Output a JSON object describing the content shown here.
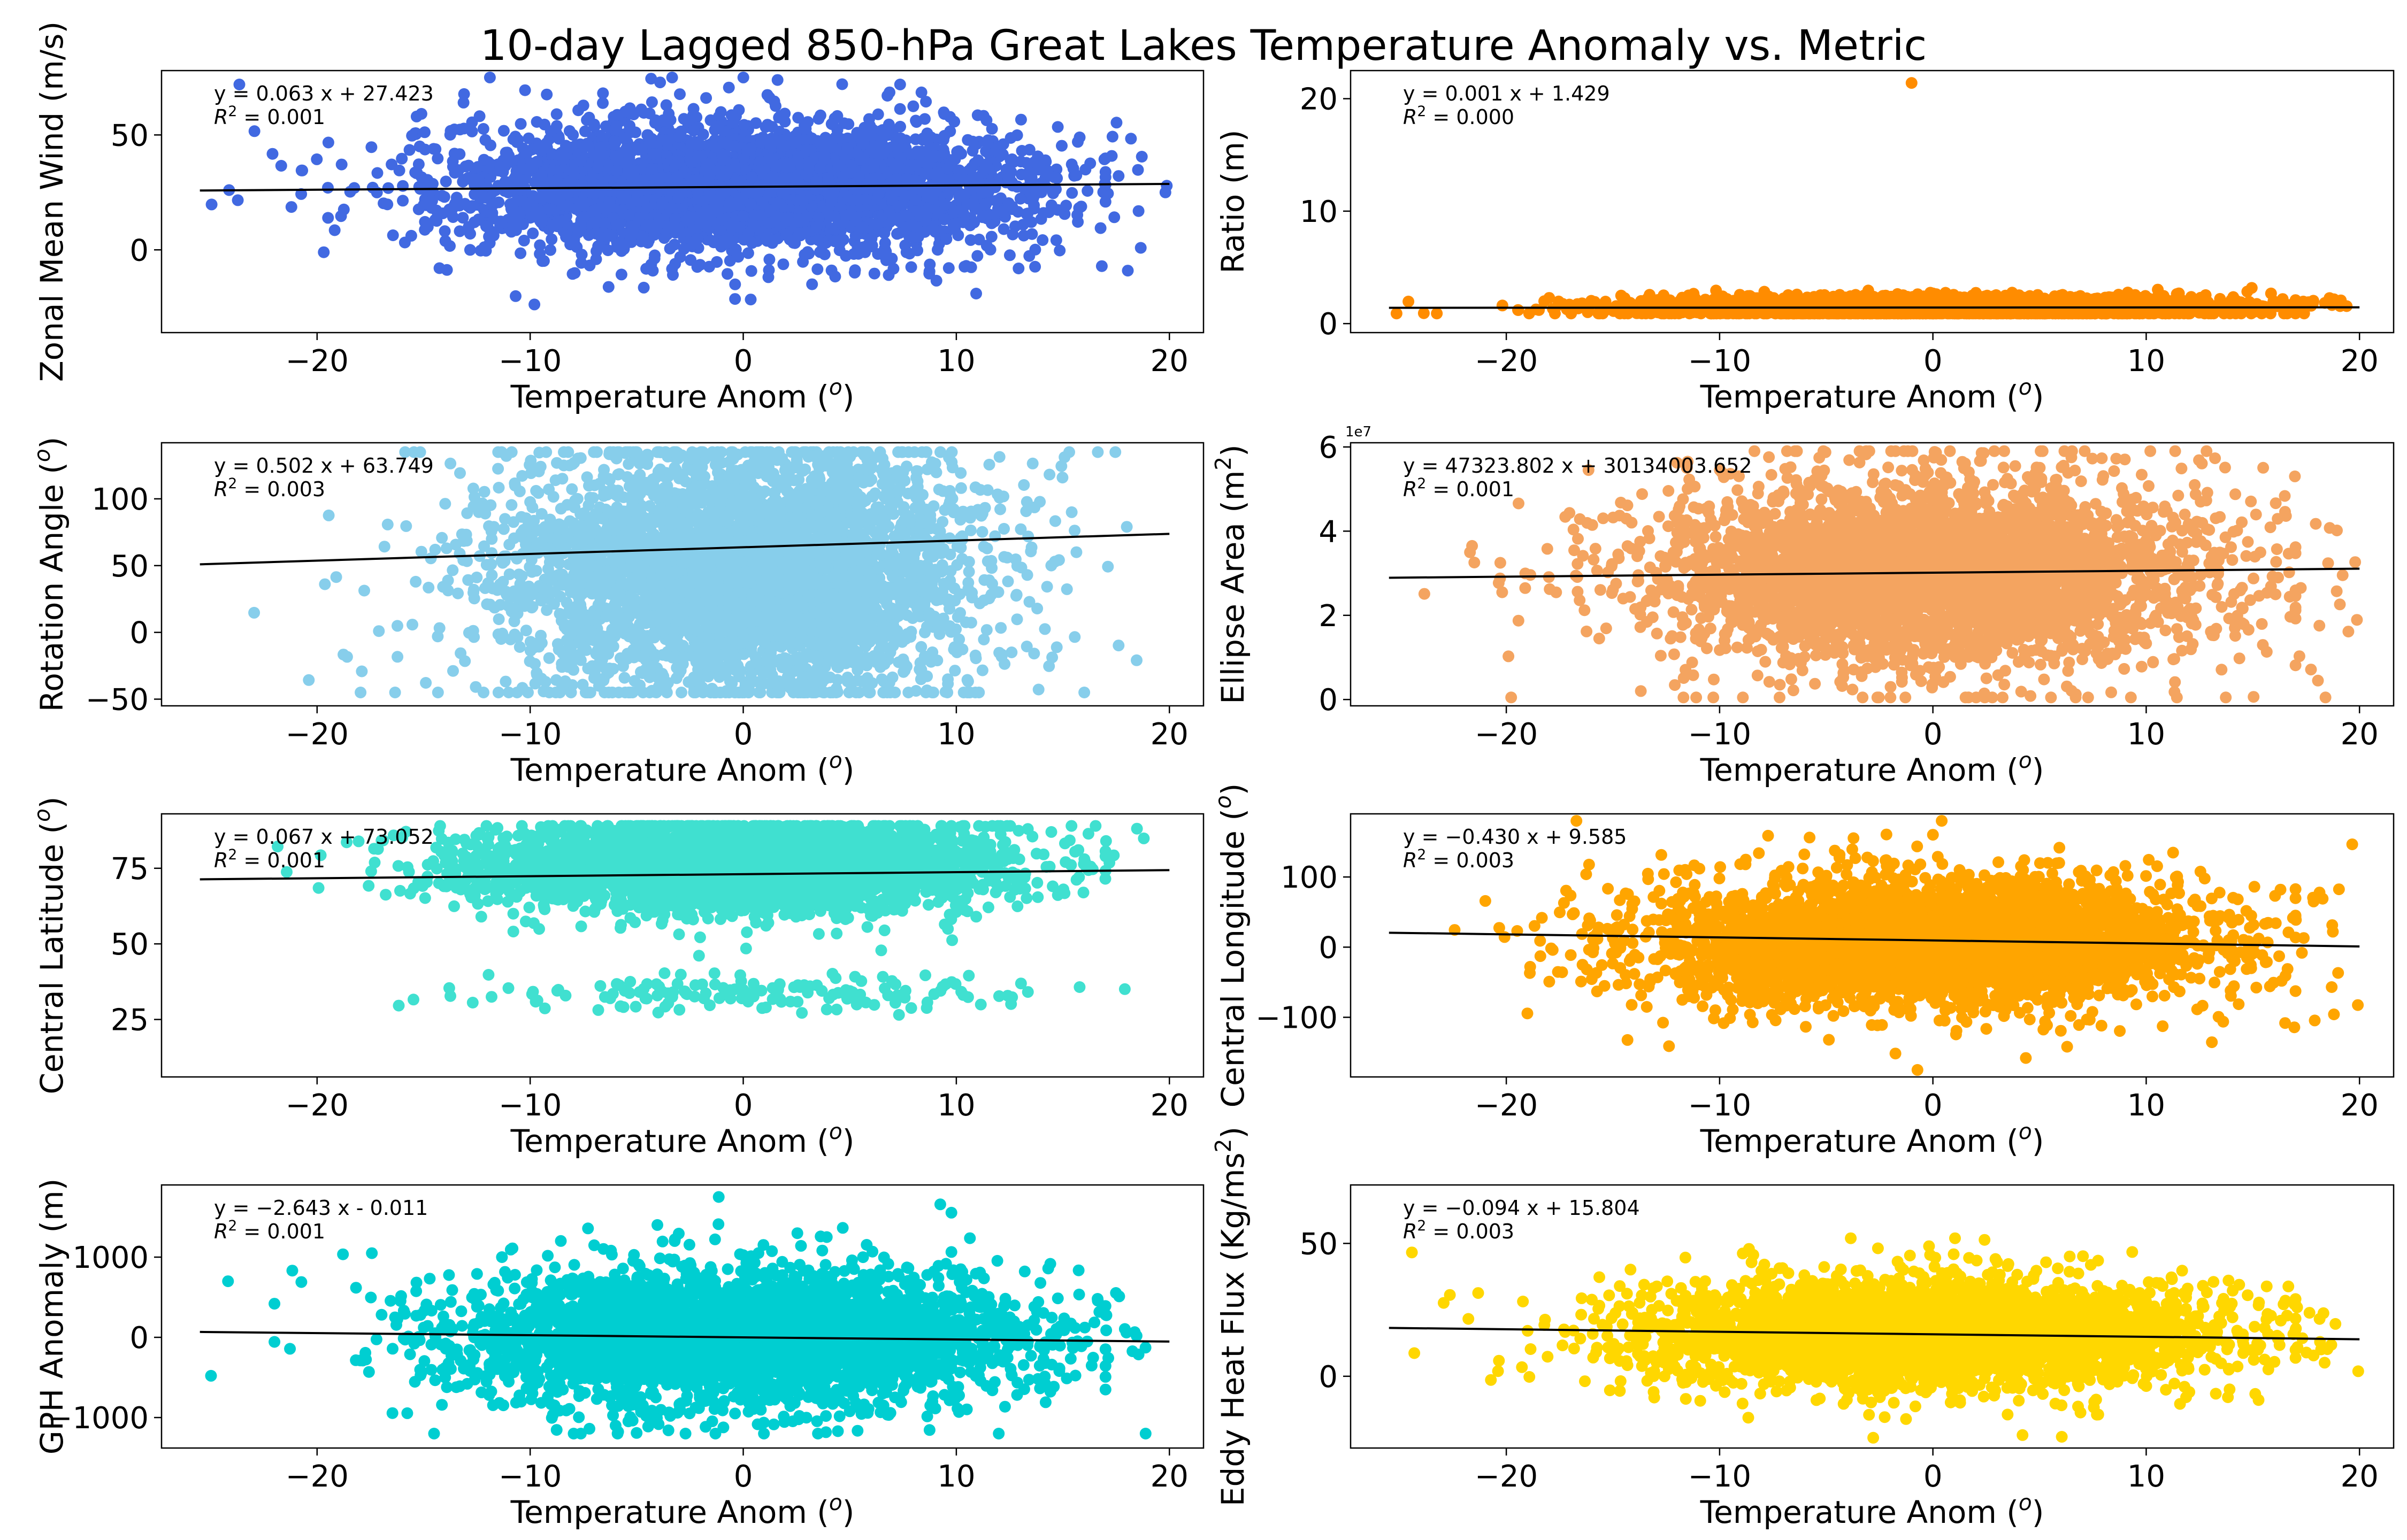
{
  "figure": {
    "title": "10-day Lagged 850-hPa Great Lakes Temperature Anomaly vs. Metric"
  },
  "chart_data": [
    {
      "type": "scatter",
      "color": "#4169E1",
      "xlabel": "Temperature Anom (o)",
      "ylabel": "Zonal Mean Wind (m/s)",
      "xlim": [
        -27.3,
        21.6
      ],
      "ylim": [
        -36,
        78
      ],
      "xticks": [
        -20,
        -10,
        0,
        10,
        20
      ],
      "yticks": [
        0,
        50
      ],
      "y_offset_label": "",
      "fit": {
        "slope": 0.063,
        "intercept": 27.423,
        "r2": 0.001,
        "x_range": [
          -25.5,
          20
        ]
      },
      "equation": "y = 0.063 x + 27.423",
      "r2_text": "R2 = 0.001",
      "cloud": {
        "x_spread": 7.5,
        "y_mean": 27,
        "y_sd": 17,
        "y_min": -33,
        "y_max": 75
      }
    },
    {
      "type": "scatter",
      "color": "#FF8C00",
      "xlabel": "Temperature Anom (o)",
      "ylabel": "Ratio (m)",
      "xlim": [
        -27.3,
        21.6
      ],
      "ylim": [
        -0.8,
        22.5
      ],
      "xticks": [
        -20,
        -10,
        0,
        10,
        20
      ],
      "yticks": [
        0,
        10,
        20
      ],
      "y_offset_label": "",
      "fit": {
        "slope": 0.001,
        "intercept": 1.429,
        "r2": 0.0,
        "x_range": [
          -25.5,
          20
        ]
      },
      "equation": "y = 0.001 x + 1.429",
      "r2_text": "R2 = 0.000",
      "cloud": {
        "x_spread": 7.5,
        "y_mean": 1.45,
        "y_sd": 0.55,
        "y_min": 0.9,
        "y_max": 4.2
      },
      "outliers": [
        {
          "x": -1,
          "y": 21.4
        }
      ]
    },
    {
      "type": "scatter",
      "color": "#87CEEB",
      "xlabel": "Temperature Anom (o)",
      "ylabel": "Rotation Angle (o)",
      "xlim": [
        -27.3,
        21.6
      ],
      "ylim": [
        -55,
        142
      ],
      "xticks": [
        -20,
        -10,
        0,
        10,
        20
      ],
      "yticks": [
        -50,
        0,
        50,
        100
      ],
      "y_offset_label": "",
      "fit": {
        "slope": 0.502,
        "intercept": 63.749,
        "r2": 0.003,
        "x_range": [
          -25.5,
          20
        ]
      },
      "equation": "y = 0.502 x + 63.749",
      "r2_text": "R2 = 0.003",
      "cloud": {
        "x_spread": 6.5,
        "y_mean": 45,
        "y_sd": 60,
        "y_min": -45,
        "y_max": 135
      }
    },
    {
      "type": "scatter",
      "color": "#F4A460",
      "xlabel": "Temperature Anom (o)",
      "ylabel": "Ellipse Area (m2)",
      "xlim": [
        -27.3,
        21.6
      ],
      "ylim": [
        -0.15,
        6.1
      ],
      "xticks": [
        -20,
        -10,
        0,
        10,
        20
      ],
      "yticks": [
        0,
        2,
        4,
        6
      ],
      "y_offset_label": "1e7",
      "fit": {
        "slope": 0.00473238,
        "intercept": 3.0134,
        "r2": 0.001,
        "x_range": [
          -25.5,
          20
        ]
      },
      "equation": "y = 47323.802 x + 30134003.652",
      "r2_text": "R2 = 0.001",
      "cloud": {
        "x_spread": 7.5,
        "y_mean": 3.0,
        "y_sd": 1.35,
        "y_min": 0.05,
        "y_max": 5.9
      }
    },
    {
      "type": "scatter",
      "color": "#40E0D0",
      "xlabel": "Temperature Anom (o)",
      "ylabel": "Central Latitude (o)",
      "xlim": [
        -27.3,
        21.6
      ],
      "ylim": [
        6,
        93
      ],
      "xticks": [
        -20,
        -10,
        0,
        10,
        20
      ],
      "yticks": [
        25,
        50,
        75
      ],
      "y_offset_label": "",
      "fit": {
        "slope": 0.067,
        "intercept": 73.052,
        "r2": 0.001,
        "x_range": [
          -25.5,
          20
        ]
      },
      "equation": "y = 0.067 x + 73.052",
      "r2_text": "R2 = 0.001",
      "cloud": {
        "x_spread": 7.0,
        "y_mean": 76,
        "y_sd": 9,
        "y_min": 10,
        "y_max": 89,
        "second_band_y": 34
      }
    },
    {
      "type": "scatter",
      "color": "#FFA500",
      "xlabel": "Temperature Anom (o)",
      "ylabel": "Central Longitude (o)",
      "xlim": [
        -27.3,
        21.6
      ],
      "ylim": [
        -185,
        190
      ],
      "xticks": [
        -20,
        -10,
        0,
        10,
        20
      ],
      "yticks": [
        -100,
        0,
        100
      ],
      "y_offset_label": "",
      "fit": {
        "slope": -0.43,
        "intercept": 9.585,
        "r2": 0.003,
        "x_range": [
          -25.5,
          20
        ]
      },
      "equation": "y = -0.430 x + 9.585",
      "r2_text": "R2 = 0.003",
      "cloud": {
        "x_spread": 7.5,
        "y_mean": 8,
        "y_sd": 55,
        "y_min": -175,
        "y_max": 180
      }
    },
    {
      "type": "scatter",
      "color": "#00CED1",
      "xlabel": "Temperature Anom (o)",
      "ylabel": "GPH Anomaly (m)",
      "xlim": [
        -27.3,
        21.6
      ],
      "ylim": [
        -1380,
        1900
      ],
      "xticks": [
        -20,
        -10,
        0,
        10,
        20
      ],
      "yticks": [
        -1000,
        0,
        1000
      ],
      "y_offset_label": "",
      "fit": {
        "slope": -2.643,
        "intercept": -0.011,
        "r2": 0.001,
        "x_range": [
          -25.5,
          20
        ]
      },
      "equation": "y = -2.643 x - 0.011",
      "r2_text": "R2 = 0.001",
      "cloud": {
        "x_spread": 7.5,
        "y_mean": 0,
        "y_sd": 500,
        "y_min": -1200,
        "y_max": 1750
      }
    },
    {
      "type": "scatter",
      "color": "#FFD700",
      "xlabel": "Temperature Anom (o)",
      "ylabel": "Eddy Heat Flux (Kg/ms2)",
      "xlim": [
        -27.3,
        21.6
      ],
      "ylim": [
        -27,
        72
      ],
      "xticks": [
        -20,
        -10,
        0,
        10,
        20
      ],
      "yticks": [
        0,
        50
      ],
      "y_offset_label": "",
      "fit": {
        "slope": -0.094,
        "intercept": 15.804,
        "r2": 0.003,
        "x_range": [
          -25.5,
          20
        ]
      },
      "equation": "y = -0.094 x + 15.804",
      "r2_text": "R2 = 0.003",
      "cloud": {
        "x_spread": 7.5,
        "y_mean": 16,
        "y_sd": 12,
        "y_min": -24,
        "y_max": 68
      }
    }
  ]
}
